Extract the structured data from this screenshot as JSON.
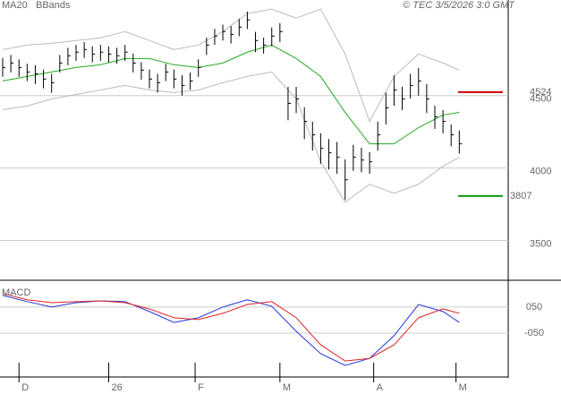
{
  "chart_data": [
    {
      "type": "ohlc",
      "legend": [
        {
          "name": "MA20",
          "color": "#22aa22"
        },
        {
          "name": "BBands",
          "color": "#bbbbbb"
        }
      ],
      "credit": "© TEC 3/5/2026 3:0 GMT",
      "xlim": [
        0,
        62
      ],
      "xticks": [
        {
          "value": 2,
          "label": "D"
        },
        {
          "value": 13,
          "label": "26"
        },
        {
          "value": 23.6,
          "label": "F"
        },
        {
          "value": 34,
          "label": "M"
        },
        {
          "value": 45.5,
          "label": "A"
        },
        {
          "value": 55.6,
          "label": "M"
        }
      ],
      "ylim": [
        3225,
        5160
      ],
      "yticks": [
        3500,
        4000,
        4500
      ],
      "color": "#000000",
      "high": [
        4760,
        4780,
        4750,
        4720,
        4710,
        4680,
        4650,
        4780,
        4830,
        4850,
        4870,
        4840,
        4850,
        4840,
        4830,
        4850,
        4790,
        4730,
        4680,
        4650,
        4720,
        4680,
        4640,
        4660,
        4750,
        4900,
        4960,
        4990,
        4980,
        5030,
        5080,
        4940,
        4900,
        4970,
        5000,
        4560,
        4560,
        4420,
        4320,
        4240,
        4200,
        4180,
        4060,
        4160,
        4140,
        4110,
        4320,
        4520,
        4640,
        4560,
        4650,
        4690,
        4580,
        4430,
        4400,
        4300,
        4260
      ],
      "low": [
        4630,
        4660,
        4630,
        4600,
        4580,
        4550,
        4520,
        4660,
        4710,
        4740,
        4760,
        4730,
        4740,
        4730,
        4720,
        4740,
        4660,
        4610,
        4550,
        4520,
        4600,
        4550,
        4500,
        4540,
        4630,
        4780,
        4850,
        4880,
        4860,
        4910,
        4960,
        4800,
        4790,
        4840,
        4870,
        4330,
        4380,
        4200,
        4120,
        4030,
        3990,
        3960,
        3780,
        3980,
        3970,
        3960,
        4120,
        4300,
        4430,
        4400,
        4480,
        4500,
        4380,
        4270,
        4240,
        4150,
        4100
      ],
      "close": [
        4694,
        4725,
        4694,
        4663,
        4650,
        4614,
        4589,
        4725,
        4775,
        4800,
        4818,
        4787,
        4800,
        4787,
        4775,
        4800,
        4725,
        4676,
        4614,
        4589,
        4663,
        4614,
        4570,
        4601,
        4694,
        4849,
        4911,
        4942,
        4923,
        4973,
        5023,
        4880,
        4849,
        4911,
        4942,
        4446,
        4477,
        4322,
        4229,
        4136,
        4105,
        4074,
        3919,
        4074,
        4055,
        4043,
        4229,
        4415,
        4539,
        4477,
        4570,
        4601,
        4477,
        4353,
        4322,
        4229,
        4167
      ],
      "line_x": [
        0,
        3,
        6,
        9,
        12,
        15,
        18,
        21,
        24,
        27,
        30,
        33,
        36,
        39,
        42,
        45,
        48,
        51,
        54,
        56
      ],
      "series": [
        {
          "name": "MA20",
          "color": "#22aa22",
          "values": [
            4601,
            4632,
            4663,
            4694,
            4713,
            4756,
            4756,
            4713,
            4694,
            4725,
            4800,
            4849,
            4756,
            4632,
            4384,
            4167,
            4167,
            4279,
            4366,
            4384
          ]
        },
        {
          "name": "BBands",
          "color": "#bbbbbb",
          "values": [
            4818,
            4849,
            4861,
            4880,
            4899,
            4942,
            4880,
            4818,
            4849,
            4942,
            5066,
            5097,
            5035,
            5097,
            4787,
            4322,
            4632,
            4787,
            4725,
            4676
          ]
        },
        {
          "name": "BBands",
          "color": "#bbbbbb",
          "values": [
            4403,
            4428,
            4477,
            4508,
            4539,
            4570,
            4539,
            4521,
            4539,
            4589,
            4632,
            4663,
            4477,
            4043,
            3764,
            3888,
            3826,
            3888,
            4012,
            4074
          ]
        }
      ],
      "levels": [
        {
          "value": 4524,
          "color": "#cc0000"
        },
        {
          "value": 3807,
          "color": "#119911"
        }
      ]
    },
    {
      "type": "line",
      "title": "MACD",
      "ylim": [
        -215,
        146
      ],
      "yticks": [
        {
          "value": 50,
          "label": "050"
        },
        {
          "value": -50,
          "label": "-050"
        }
      ],
      "x": [
        0,
        3,
        6,
        9,
        12,
        15,
        18,
        21,
        24,
        27,
        30,
        33,
        36,
        39,
        42,
        45,
        48,
        51,
        54,
        56
      ],
      "series": [
        {
          "color": "#2233dd",
          "values": [
            95,
            71,
            50,
            67,
            74,
            71,
            33,
            -9,
            9,
            50,
            78,
            53,
            -43,
            -129,
            -174,
            -147,
            -60,
            60,
            33,
            -9
          ]
        },
        {
          "color": "#dd2222",
          "values": [
            102,
            78,
            67,
            71,
            74,
            67,
            43,
            9,
            2,
            26,
            60,
            71,
            9,
            -95,
            -157,
            -147,
            -95,
            9,
            43,
            26
          ]
        }
      ]
    }
  ]
}
